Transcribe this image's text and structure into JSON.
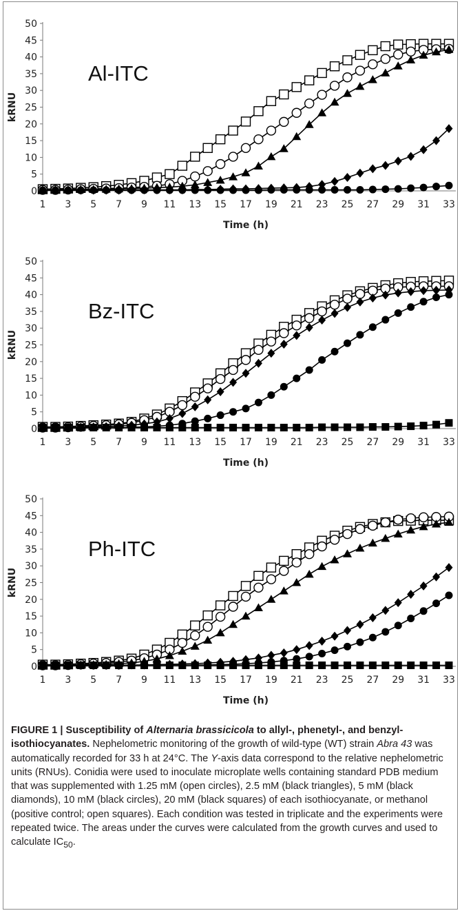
{
  "chart_data": [
    {
      "type": "line",
      "panel_label": "Al-ITC",
      "xlabel": "Time (h)",
      "ylabel": "kRNU",
      "ylim": [
        0,
        50
      ],
      "xlim": [
        1,
        33
      ],
      "x_ticks": [
        "1",
        "3",
        "5",
        "7",
        "9",
        "11",
        "13",
        "15",
        "17",
        "19",
        "21",
        "23",
        "25",
        "27",
        "29",
        "31",
        "33"
      ],
      "y_ticks": [
        "0",
        "5",
        "10",
        "15",
        "20",
        "25",
        "30",
        "35",
        "40",
        "45",
        "50"
      ],
      "x": [
        1,
        2,
        3,
        4,
        5,
        6,
        7,
        8,
        9,
        10,
        11,
        12,
        13,
        14,
        15,
        16,
        17,
        18,
        19,
        20,
        21,
        22,
        23,
        24,
        25,
        26,
        27,
        28,
        29,
        30,
        31,
        32,
        33
      ],
      "series": [
        {
          "marker": "open-square",
          "values": [
            0.5,
            0.6,
            0.7,
            0.9,
            1.1,
            1.4,
            1.8,
            2.3,
            3.0,
            4.0,
            5.0,
            7.5,
            10.2,
            12.8,
            15.4,
            18.0,
            20.7,
            23.8,
            26.8,
            28.8,
            31.0,
            33.0,
            35.2,
            37.2,
            39.0,
            40.6,
            42.0,
            43.2,
            43.7,
            43.8,
            43.9,
            43.9,
            43.9
          ]
        },
        {
          "marker": "open-circle",
          "values": [
            0.3,
            0.3,
            0.4,
            0.5,
            0.6,
            0.7,
            0.8,
            1.0,
            1.2,
            1.5,
            2.0,
            3.0,
            4.3,
            5.9,
            8.0,
            10.2,
            12.8,
            15.4,
            18.0,
            20.6,
            23.3,
            26.1,
            28.7,
            31.4,
            33.9,
            35.9,
            37.8,
            39.4,
            40.7,
            41.6,
            42.1,
            42.3,
            42.4
          ]
        },
        {
          "marker": "filled-triangle",
          "values": [
            0.3,
            0.3,
            0.3,
            0.4,
            0.4,
            0.5,
            0.6,
            0.7,
            0.8,
            1.0,
            1.1,
            1.4,
            1.8,
            2.5,
            3.2,
            4.2,
            5.4,
            7.4,
            10.2,
            12.6,
            16.2,
            19.8,
            23.3,
            26.5,
            29.1,
            31.2,
            33.2,
            35.2,
            37.3,
            39.1,
            40.5,
            41.5,
            42.2
          ]
        },
        {
          "marker": "filled-diamond",
          "values": [
            0.2,
            0.2,
            0.2,
            0.2,
            0.2,
            0.2,
            0.2,
            0.3,
            0.3,
            0.3,
            0.3,
            0.3,
            0.4,
            0.4,
            0.5,
            0.6,
            0.6,
            0.7,
            0.8,
            0.9,
            1.0,
            1.3,
            1.9,
            2.8,
            4.0,
            5.3,
            6.6,
            7.6,
            8.9,
            10.3,
            12.3,
            15.0,
            18.6
          ]
        },
        {
          "marker": "filled-circle",
          "values": [
            0.2,
            0.2,
            0.2,
            0.2,
            0.2,
            0.2,
            0.2,
            0.2,
            0.2,
            0.2,
            0.2,
            0.2,
            0.2,
            0.2,
            0.2,
            0.2,
            0.2,
            0.2,
            0.3,
            0.3,
            0.3,
            0.3,
            0.3,
            0.3,
            0.3,
            0.3,
            0.4,
            0.5,
            0.6,
            0.8,
            1.0,
            1.3,
            1.6
          ]
        }
      ]
    },
    {
      "type": "line",
      "panel_label": "Bz-ITC",
      "xlabel": "Time (h)",
      "ylabel": "kRNU",
      "ylim": [
        0,
        50
      ],
      "xlim": [
        1,
        33
      ],
      "x_ticks": [
        "1",
        "3",
        "5",
        "7",
        "9",
        "11",
        "13",
        "15",
        "17",
        "19",
        "21",
        "23",
        "25",
        "27",
        "29",
        "31",
        "33"
      ],
      "y_ticks": [
        "0",
        "5",
        "10",
        "15",
        "20",
        "25",
        "30",
        "35",
        "40",
        "45",
        "50"
      ],
      "x": [
        1,
        2,
        3,
        4,
        5,
        6,
        7,
        8,
        9,
        10,
        11,
        12,
        13,
        14,
        15,
        16,
        17,
        18,
        19,
        20,
        21,
        22,
        23,
        24,
        25,
        26,
        27,
        28,
        29,
        30,
        31,
        32,
        33
      ],
      "series": [
        {
          "marker": "open-square",
          "values": [
            0.5,
            0.5,
            0.6,
            0.8,
            1.0,
            1.2,
            1.5,
            2.0,
            3.0,
            4.2,
            6.0,
            8.2,
            10.8,
            13.5,
            16.5,
            19.5,
            22.5,
            25.4,
            28.0,
            30.4,
            32.5,
            34.5,
            36.5,
            38.3,
            39.8,
            41.0,
            42.0,
            42.8,
            43.4,
            43.8,
            44.0,
            44.1,
            44.2
          ]
        },
        {
          "marker": "open-circle",
          "values": [
            0.3,
            0.3,
            0.4,
            0.6,
            0.8,
            1.0,
            1.3,
            1.7,
            2.5,
            3.5,
            5.0,
            7.0,
            9.5,
            12.0,
            14.8,
            17.5,
            20.5,
            23.5,
            26.0,
            28.5,
            30.8,
            33.0,
            35.0,
            37.0,
            38.8,
            40.2,
            41.2,
            41.8,
            42.2,
            42.4,
            42.5,
            42.5,
            42.5
          ]
        },
        {
          "marker": "filled-diamond",
          "values": [
            0.3,
            0.3,
            0.3,
            0.4,
            0.5,
            0.6,
            0.8,
            1.0,
            1.4,
            2.0,
            3.0,
            4.5,
            6.5,
            8.6,
            11.0,
            13.8,
            16.5,
            19.5,
            22.5,
            25.2,
            27.8,
            30.2,
            32.4,
            34.4,
            36.2,
            37.8,
            39.0,
            39.9,
            40.5,
            40.9,
            41.2,
            41.3,
            41.4
          ]
        },
        {
          "marker": "filled-circle",
          "values": [
            0.2,
            0.2,
            0.2,
            0.2,
            0.3,
            0.3,
            0.3,
            0.4,
            0.5,
            0.7,
            1.0,
            1.5,
            2.2,
            3.0,
            4.0,
            5.0,
            6.0,
            7.8,
            10.0,
            12.5,
            15.0,
            17.5,
            20.5,
            23.0,
            25.5,
            28.0,
            30.3,
            32.5,
            34.5,
            36.3,
            37.9,
            39.2,
            40.0
          ]
        },
        {
          "marker": "filled-square",
          "values": [
            0.3,
            0.3,
            0.3,
            0.3,
            0.3,
            0.3,
            0.3,
            0.3,
            0.3,
            0.3,
            0.3,
            0.3,
            0.3,
            0.3,
            0.3,
            0.3,
            0.3,
            0.3,
            0.3,
            0.3,
            0.3,
            0.3,
            0.4,
            0.4,
            0.4,
            0.4,
            0.5,
            0.5,
            0.6,
            0.7,
            0.9,
            1.2,
            1.7
          ]
        }
      ]
    },
    {
      "type": "line",
      "panel_label": "Ph-ITC",
      "xlabel": "Time (h)",
      "ylabel": "kRNU",
      "ylim": [
        0,
        50
      ],
      "xlim": [
        1,
        33
      ],
      "x_ticks": [
        "1",
        "3",
        "5",
        "7",
        "9",
        "11",
        "13",
        "15",
        "17",
        "19",
        "21",
        "23",
        "25",
        "27",
        "29",
        "31",
        "33"
      ],
      "y_ticks": [
        "0",
        "5",
        "10",
        "15",
        "20",
        "25",
        "30",
        "35",
        "40",
        "45",
        "50"
      ],
      "x": [
        1,
        2,
        3,
        4,
        5,
        6,
        7,
        8,
        9,
        10,
        11,
        12,
        13,
        14,
        15,
        16,
        17,
        18,
        19,
        20,
        21,
        22,
        23,
        24,
        25,
        26,
        27,
        28,
        29,
        30,
        31,
        32,
        33
      ],
      "series": [
        {
          "marker": "open-square",
          "values": [
            0.5,
            0.5,
            0.6,
            0.8,
            1.0,
            1.3,
            1.7,
            2.3,
            3.5,
            5.0,
            7.0,
            9.5,
            12.2,
            15.2,
            18.2,
            21.0,
            24.0,
            27.0,
            29.5,
            31.5,
            33.5,
            35.5,
            37.5,
            39.0,
            40.5,
            41.6,
            42.5,
            43.0,
            43.4,
            43.5,
            43.6,
            43.6,
            43.6
          ]
        },
        {
          "marker": "open-circle",
          "values": [
            0.3,
            0.3,
            0.4,
            0.6,
            0.8,
            1.0,
            1.3,
            1.7,
            2.4,
            3.5,
            5.0,
            7.0,
            9.2,
            11.8,
            14.8,
            17.8,
            20.8,
            23.5,
            26.0,
            28.5,
            31.0,
            33.5,
            35.8,
            37.8,
            39.5,
            41.0,
            42.0,
            43.0,
            43.8,
            44.2,
            44.5,
            44.6,
            44.7
          ]
        },
        {
          "marker": "filled-triangle",
          "values": [
            0.3,
            0.3,
            0.3,
            0.4,
            0.5,
            0.6,
            0.8,
            1.0,
            1.5,
            2.2,
            3.2,
            4.5,
            6.0,
            7.8,
            10.0,
            12.5,
            15.0,
            17.5,
            20.0,
            22.5,
            25.0,
            27.5,
            29.8,
            31.8,
            33.6,
            35.3,
            36.8,
            38.2,
            39.5,
            40.7,
            41.7,
            42.5,
            43.0
          ]
        },
        {
          "marker": "filled-diamond",
          "values": [
            0.2,
            0.2,
            0.2,
            0.3,
            0.3,
            0.3,
            0.3,
            0.4,
            0.4,
            0.5,
            0.6,
            0.7,
            0.8,
            1.0,
            1.2,
            1.5,
            2.0,
            2.5,
            3.3,
            4.0,
            5.0,
            6.2,
            7.5,
            9.0,
            10.7,
            12.5,
            14.5,
            16.7,
            19.0,
            21.5,
            24.0,
            26.7,
            29.5
          ]
        },
        {
          "marker": "filled-circle",
          "values": [
            0.2,
            0.2,
            0.2,
            0.2,
            0.2,
            0.2,
            0.2,
            0.3,
            0.3,
            0.3,
            0.3,
            0.3,
            0.4,
            0.4,
            0.5,
            0.6,
            0.8,
            1.0,
            1.3,
            1.7,
            2.2,
            2.9,
            3.8,
            4.8,
            5.9,
            7.2,
            8.6,
            10.3,
            12.2,
            14.3,
            16.5,
            18.8,
            21.2
          ]
        },
        {
          "marker": "filled-square",
          "values": [
            0.3,
            0.3,
            0.3,
            0.3,
            0.3,
            0.3,
            0.3,
            0.3,
            0.3,
            0.3,
            0.3,
            0.3,
            0.3,
            0.3,
            0.3,
            0.3,
            0.3,
            0.3,
            0.3,
            0.3,
            0.3,
            0.3,
            0.3,
            0.3,
            0.3,
            0.3,
            0.3,
            0.3,
            0.3,
            0.3,
            0.3,
            0.3,
            0.3
          ]
        }
      ]
    }
  ],
  "caption": {
    "figure_label": "FIGURE 1 |",
    "title_1": " Susceptibility of ",
    "title_species": "Alternaria brassicicola",
    "title_2": " to allyl-, phenetyl-, and benzyl-isothiocyanates.",
    "body_1": " Nephelometric monitoring of the growth of wild-type (WT) strain ",
    "body_strain": "Abra 43",
    "body_2": " was automatically recorded for 33 h at 24°C. The ",
    "body_axis": "Y",
    "body_3": "-axis data correspond to the relative nephelometric units (RNUs). Conidia were used to inoculate microplate wells containing standard PDB medium that was supplemented with 1.25 mM (open circles), 2.5 mM (black triangles), 5 mM (black diamonds), 10 mM (black circles), 20 mM (black squares) of each isothiocyanate, or methanol (positive control; open squares). Each condition was tested in triplicate and the experiments were repeated twice. The areas under the curves were calculated from the growth curves and used to calculate IC",
    "body_sub": "50",
    "body_4": "."
  }
}
